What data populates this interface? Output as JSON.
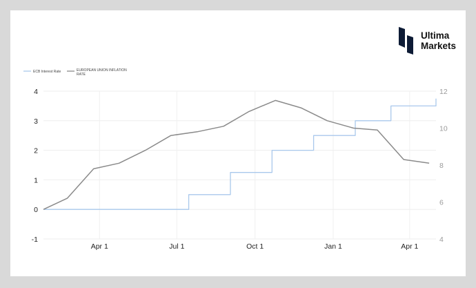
{
  "brand": {
    "line1": "Ultima",
    "line2": "Markets",
    "logo_icon": "ultima-markets-logo-icon"
  },
  "chart_data": {
    "type": "line",
    "x_tick_labels": [
      "Apr 1",
      "Jul 1",
      "Oct 1",
      "Jan 1",
      "Apr 1"
    ],
    "x_tick_days": [
      66,
      157,
      249,
      341,
      431
    ],
    "x_range_days": [
      0,
      462
    ],
    "left_axis": {
      "ticks": [
        -1,
        0,
        1,
        2,
        3,
        4
      ],
      "range": [
        -1,
        4
      ]
    },
    "right_axis": {
      "ticks": [
        4,
        6,
        8,
        10,
        12
      ],
      "range": [
        4,
        12
      ]
    },
    "grid": true,
    "legend_placement": "top-left",
    "series": [
      {
        "name": "ECB Interest Rate",
        "axis": "left",
        "color": "#a9c8ec",
        "step": true,
        "points": [
          [
            0,
            0.0
          ],
          [
            171,
            0.0
          ],
          [
            171,
            0.5
          ],
          [
            220,
            0.5
          ],
          [
            220,
            1.25
          ],
          [
            269,
            1.25
          ],
          [
            269,
            2.0
          ],
          [
            318,
            2.0
          ],
          [
            318,
            2.5
          ],
          [
            367,
            2.5
          ],
          [
            367,
            3.0
          ],
          [
            409,
            3.0
          ],
          [
            409,
            3.5
          ],
          [
            462,
            3.5
          ],
          [
            462,
            3.75
          ]
        ]
      },
      {
        "name": "EUROPEAN UNION INFLATION RATE",
        "axis": "right",
        "color": "#8a8a8a",
        "step": false,
        "points": [
          [
            0,
            5.6
          ],
          [
            28,
            6.2
          ],
          [
            59,
            7.8
          ],
          [
            89,
            8.1
          ],
          [
            120,
            8.8
          ],
          [
            150,
            9.6
          ],
          [
            181,
            9.8
          ],
          [
            212,
            10.1
          ],
          [
            242,
            10.9
          ],
          [
            273,
            11.5
          ],
          [
            303,
            11.1
          ],
          [
            334,
            10.4
          ],
          [
            365,
            10.0
          ],
          [
            393,
            9.9
          ],
          [
            424,
            8.3
          ],
          [
            454,
            8.1
          ]
        ]
      }
    ]
  }
}
